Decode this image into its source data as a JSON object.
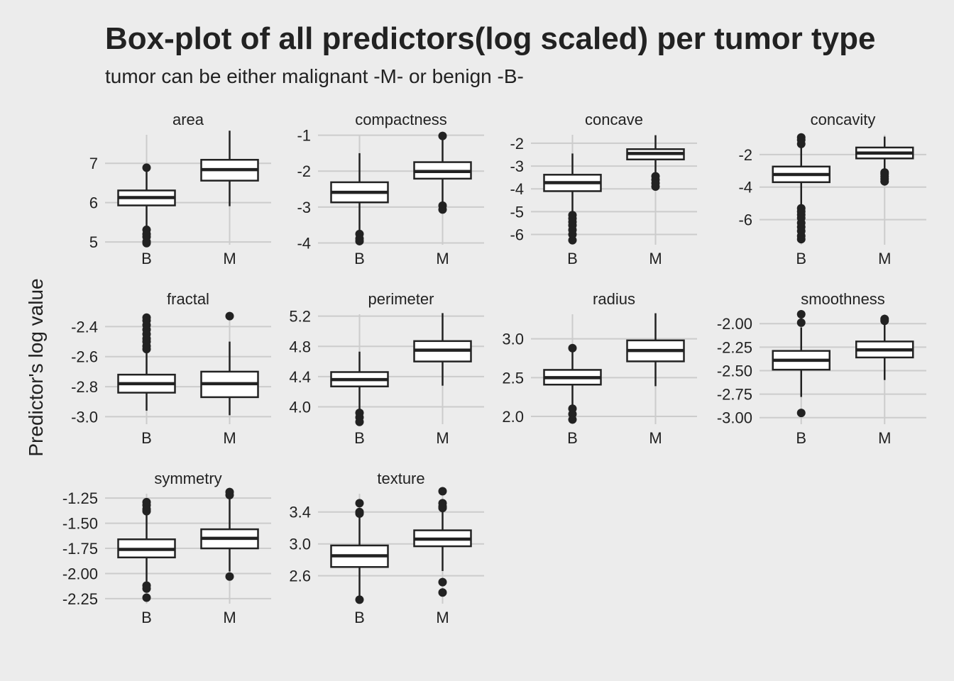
{
  "title": "Box-plot of all predictors(log scaled) per tumor type",
  "subtitle": "tumor can be either malignant -M- or benign -B-",
  "chart_data": {
    "type": "box",
    "ylabel": "Predictor's log value",
    "categories": [
      "B",
      "M"
    ],
    "grid": true,
    "panels": [
      {
        "name": "area",
        "ylim": [
          4.93,
          7.87
        ],
        "yticks": [
          5,
          6,
          7
        ],
        "tick_labels": [
          "5",
          "6",
          "7"
        ],
        "boxes": [
          {
            "category": "B",
            "q1": 5.93,
            "median": 6.13,
            "q3": 6.31,
            "whisker_low": 5.4,
            "whisker_high": 6.8,
            "outliers": [
              6.89,
              5.31,
              5.2,
              5.13,
              5.01,
              4.97
            ]
          },
          {
            "category": "M",
            "q1": 6.56,
            "median": 6.84,
            "q3": 7.09,
            "whisker_low": 5.91,
            "whisker_high": 7.83,
            "outliers": []
          }
        ]
      },
      {
        "name": "compactness",
        "ylim": [
          -4.05,
          -0.83
        ],
        "yticks": [
          -4,
          -3,
          -2,
          -1
        ],
        "tick_labels": [
          "-4",
          "-3",
          "-2",
          "-1"
        ],
        "boxes": [
          {
            "category": "B",
            "q1": -2.87,
            "median": -2.59,
            "q3": -2.31,
            "whisker_low": -3.7,
            "whisker_high": -1.5,
            "outliers": [
              -3.75,
              -3.88,
              -3.95
            ]
          },
          {
            "category": "M",
            "q1": -2.21,
            "median": -2.01,
            "q3": -1.75,
            "whisker_low": -2.92,
            "whisker_high": -1.1,
            "outliers": [
              -1.02,
              -2.96,
              -3.07
            ]
          }
        ]
      },
      {
        "name": "concave",
        "ylim": [
          -6.45,
          -1.38
        ],
        "yticks": [
          -6,
          -5,
          -4,
          -3,
          -2
        ],
        "tick_labels": [
          "-6",
          "-5",
          "-4",
          "-3",
          "-2"
        ],
        "boxes": [
          {
            "category": "B",
            "q1": -4.1,
            "median": -3.73,
            "q3": -3.38,
            "whisker_low": -5.1,
            "whisker_high": -2.45,
            "outliers": [
              -5.15,
              -5.3,
              -5.45,
              -5.6,
              -5.8,
              -6.0,
              -6.25
            ]
          },
          {
            "category": "M",
            "q1": -2.71,
            "median": -2.45,
            "q3": -2.26,
            "whisker_low": -3.35,
            "whisker_high": -1.65,
            "outliers": [
              -3.45,
              -3.6,
              -3.75,
              -3.9
            ]
          }
        ]
      },
      {
        "name": "concavity",
        "ylim": [
          -7.54,
          -0.44
        ],
        "yticks": [
          -6,
          -4,
          -2
        ],
        "tick_labels": [
          "-6",
          "-4",
          "-2"
        ],
        "boxes": [
          {
            "category": "B",
            "q1": -3.7,
            "median": -3.23,
            "q3": -2.74,
            "whisker_low": -5.1,
            "whisker_high": -1.55,
            "outliers": [
              -0.95,
              -1.1,
              -1.35,
              -5.3,
              -5.5,
              -5.7,
              -5.9,
              -6.2,
              -6.45,
              -6.7,
              -7.0,
              -7.2
            ]
          },
          {
            "category": "M",
            "q1": -2.24,
            "median": -1.91,
            "q3": -1.57,
            "whisker_low": -3.0,
            "whisker_high": -0.9,
            "outliers": [
              -3.1,
              -3.2,
              -3.35,
              -3.5,
              -3.65
            ]
          }
        ]
      },
      {
        "name": "fractal",
        "ylim": [
          -3.05,
          -2.28
        ],
        "yticks": [
          -3.0,
          -2.8,
          -2.6,
          -2.4
        ],
        "tick_labels": [
          "-3.0",
          "-2.8",
          "-2.6",
          "-2.4"
        ],
        "boxes": [
          {
            "category": "B",
            "q1": -2.84,
            "median": -2.78,
            "q3": -2.72,
            "whisker_low": -2.96,
            "whisker_high": -2.57,
            "outliers": [
              -2.34,
              -2.36,
              -2.39,
              -2.42,
              -2.45,
              -2.48,
              -2.5,
              -2.53,
              -2.55
            ]
          },
          {
            "category": "M",
            "q1": -2.87,
            "median": -2.78,
            "q3": -2.7,
            "whisker_low": -2.99,
            "whisker_high": -2.5,
            "outliers": [
              -2.33
            ]
          }
        ]
      },
      {
        "name": "perimeter",
        "ylim": [
          3.77,
          5.3
        ],
        "yticks": [
          4.0,
          4.4,
          4.8,
          5.2
        ],
        "tick_labels": [
          "4.0",
          "4.4",
          "4.8",
          "5.2"
        ],
        "boxes": [
          {
            "category": "B",
            "q1": 4.27,
            "median": 4.36,
            "q3": 4.46,
            "whisker_low": 3.97,
            "whisker_high": 4.73,
            "outliers": [
              3.92,
              3.86,
              3.8
            ]
          },
          {
            "category": "M",
            "q1": 4.6,
            "median": 4.75,
            "q3": 4.87,
            "whisker_low": 4.28,
            "whisker_high": 5.24,
            "outliers": []
          }
        ]
      },
      {
        "name": "radius",
        "ylim": [
          1.9,
          3.39
        ],
        "yticks": [
          2.0,
          2.5,
          3.0
        ],
        "tick_labels": [
          "2.0",
          "2.5",
          "3.0"
        ],
        "boxes": [
          {
            "category": "B",
            "q1": 2.41,
            "median": 2.5,
            "q3": 2.6,
            "whisker_low": 2.13,
            "whisker_high": 2.83,
            "outliers": [
              2.88,
              2.1,
              2.03,
              1.96
            ]
          },
          {
            "category": "M",
            "q1": 2.71,
            "median": 2.85,
            "q3": 2.98,
            "whisker_low": 2.39,
            "whisker_high": 3.33,
            "outliers": []
          }
        ]
      },
      {
        "name": "smoothness",
        "ylim": [
          -3.07,
          -1.84
        ],
        "yticks": [
          -3.0,
          -2.75,
          -2.5,
          -2.25,
          -2.0
        ],
        "tick_labels": [
          "-3.00",
          "-2.75",
          "-2.50",
          "-2.25",
          "-2.00"
        ],
        "boxes": [
          {
            "category": "B",
            "q1": -2.49,
            "median": -2.39,
            "q3": -2.29,
            "whisker_low": -2.78,
            "whisker_high": -2.04,
            "outliers": [
              -1.9,
              -1.99,
              -2.95
            ]
          },
          {
            "category": "M",
            "q1": -2.36,
            "median": -2.28,
            "q3": -2.19,
            "whisker_low": -2.6,
            "whisker_high": -1.97,
            "outliers": [
              -1.95,
              -1.97
            ]
          }
        ]
      },
      {
        "name": "symmetry",
        "ylim": [
          -2.3,
          -1.15
        ],
        "yticks": [
          -2.25,
          -2.0,
          -1.75,
          -1.5,
          -1.25
        ],
        "tick_labels": [
          "-2.25",
          "-2.00",
          "-1.75",
          "-1.50",
          "-1.25"
        ],
        "boxes": [
          {
            "category": "B",
            "q1": -1.84,
            "median": -1.76,
            "q3": -1.66,
            "whisker_low": -2.08,
            "whisker_high": -1.4,
            "outliers": [
              -1.29,
              -1.32,
              -1.36,
              -1.38,
              -2.12,
              -2.15,
              -2.24
            ]
          },
          {
            "category": "M",
            "q1": -1.75,
            "median": -1.65,
            "q3": -1.56,
            "whisker_low": -1.98,
            "whisker_high": -1.26,
            "outliers": [
              -1.19,
              -1.22,
              -2.03
            ]
          }
        ]
      },
      {
        "name": "texture",
        "ylim": [
          2.25,
          3.7
        ],
        "yticks": [
          2.6,
          3.0,
          3.4
        ],
        "tick_labels": [
          "2.6",
          "3.0",
          "3.4"
        ],
        "boxes": [
          {
            "category": "B",
            "q1": 2.71,
            "median": 2.85,
            "q3": 2.98,
            "whisker_low": 2.32,
            "whisker_high": 3.35,
            "outliers": [
              3.51,
              3.4,
              3.38,
              2.3
            ]
          },
          {
            "category": "M",
            "q1": 2.97,
            "median": 3.06,
            "q3": 3.17,
            "whisker_low": 2.66,
            "whisker_high": 3.44,
            "outliers": [
              3.66,
              3.51,
              3.47,
              3.45,
              2.52,
              2.39
            ]
          }
        ]
      }
    ]
  }
}
